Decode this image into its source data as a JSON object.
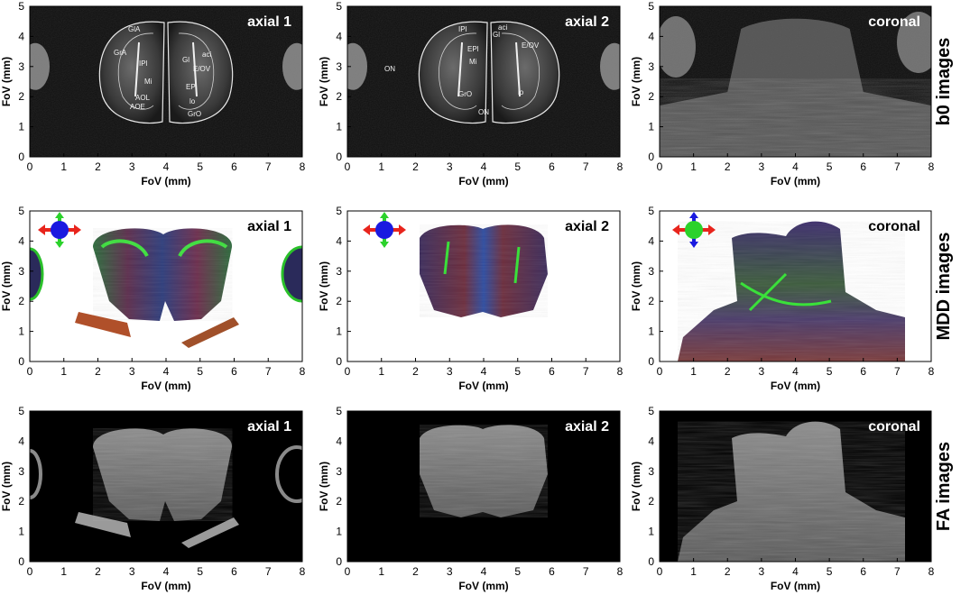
{
  "row_labels": [
    "b0 images",
    "MDD images",
    "FA images"
  ],
  "panels": [
    {
      "row": 0,
      "col": 0,
      "title": "axial 1",
      "xlabel": "FoV (mm)",
      "ylabel": "FoV (mm)",
      "x_ticks": [
        "0",
        "1",
        "2",
        "3",
        "4",
        "5",
        "6",
        "7",
        "8"
      ],
      "y_ticks": [
        "0",
        "1",
        "2",
        "3",
        "4",
        "5"
      ],
      "xlim": [
        0,
        8
      ],
      "ylim": [
        0,
        5
      ],
      "modality": "b0"
    },
    {
      "row": 0,
      "col": 1,
      "title": "axial 2",
      "xlabel": "FoV (mm)",
      "ylabel": "FoV (mm)",
      "x_ticks": [
        "0",
        "1",
        "2",
        "3",
        "4",
        "5",
        "6",
        "7",
        "8"
      ],
      "y_ticks": [
        "0",
        "1",
        "2",
        "3",
        "4",
        "5"
      ],
      "xlim": [
        0,
        8
      ],
      "ylim": [
        0,
        5
      ],
      "modality": "b0"
    },
    {
      "row": 0,
      "col": 2,
      "title": "coronal",
      "xlabel": "FoV (mm)",
      "ylabel": "FoV (mm)",
      "x_ticks": [
        "0",
        "1",
        "2",
        "3",
        "4",
        "5",
        "6",
        "7",
        "8"
      ],
      "y_ticks": [
        "0",
        "1",
        "2",
        "3",
        "4",
        "5"
      ],
      "xlim": [
        0,
        8
      ],
      "ylim": [
        0,
        5
      ],
      "modality": "b0"
    },
    {
      "row": 1,
      "col": 0,
      "title": "axial 1",
      "xlabel": "FoV (mm)",
      "ylabel": "FoV (mm)",
      "x_ticks": [
        "0",
        "1",
        "2",
        "3",
        "4",
        "5",
        "6",
        "7",
        "8"
      ],
      "y_ticks": [
        "0",
        "1",
        "2",
        "3",
        "4",
        "5"
      ],
      "xlim": [
        0,
        8
      ],
      "ylim": [
        0,
        5
      ],
      "modality": "mdd"
    },
    {
      "row": 1,
      "col": 1,
      "title": "axial 2",
      "xlabel": "FoV (mm)",
      "ylabel": "FoV (mm)",
      "x_ticks": [
        "0",
        "1",
        "2",
        "3",
        "4",
        "5",
        "6",
        "7",
        "8"
      ],
      "y_ticks": [
        "0",
        "1",
        "2",
        "3",
        "4",
        "5"
      ],
      "xlim": [
        0,
        8
      ],
      "ylim": [
        0,
        5
      ],
      "modality": "mdd"
    },
    {
      "row": 1,
      "col": 2,
      "title": "coronal",
      "xlabel": "FoV (mm)",
      "ylabel": "FoV (mm)",
      "x_ticks": [
        "0",
        "1",
        "2",
        "3",
        "4",
        "5",
        "6",
        "7",
        "8"
      ],
      "y_ticks": [
        "0",
        "1",
        "2",
        "3",
        "4",
        "5"
      ],
      "xlim": [
        0,
        8
      ],
      "ylim": [
        0,
        5
      ],
      "modality": "mdd"
    },
    {
      "row": 2,
      "col": 0,
      "title": "axial 1",
      "xlabel": "FoV (mm)",
      "ylabel": "FoV (mm)",
      "x_ticks": [
        "0",
        "1",
        "2",
        "3",
        "4",
        "5",
        "6",
        "7",
        "8"
      ],
      "y_ticks": [
        "0",
        "1",
        "2",
        "3",
        "4",
        "5"
      ],
      "xlim": [
        0,
        8
      ],
      "ylim": [
        0,
        5
      ],
      "modality": "fa"
    },
    {
      "row": 2,
      "col": 1,
      "title": "axial 2",
      "xlabel": "FoV (mm)",
      "ylabel": "FoV (mm)",
      "x_ticks": [
        "0",
        "1",
        "2",
        "3",
        "4",
        "5",
        "6",
        "7",
        "8"
      ],
      "y_ticks": [
        "0",
        "1",
        "2",
        "3",
        "4",
        "5"
      ],
      "xlim": [
        0,
        8
      ],
      "ylim": [
        0,
        5
      ],
      "modality": "fa"
    },
    {
      "row": 2,
      "col": 2,
      "title": "coronal",
      "xlabel": "FoV (mm)",
      "ylabel": "FoV (mm)",
      "x_ticks": [
        "0",
        "1",
        "2",
        "3",
        "4",
        "5",
        "6",
        "7",
        "8"
      ],
      "y_ticks": [
        "0",
        "1",
        "2",
        "3",
        "4",
        "5"
      ],
      "xlim": [
        0,
        8
      ],
      "ylim": [
        0,
        5
      ],
      "modality": "fa"
    }
  ],
  "atlas_labels": {
    "axial 1": [
      "GlA",
      "GrA",
      "IPl",
      "Gl",
      "Mi",
      "AOL",
      "AOE",
      "EPl",
      "E/OV",
      "aci",
      "lo",
      "GrO"
    ],
    "axial 2": [
      "IPl",
      "Gl",
      "EPl",
      "Mi",
      "GrO",
      "ON",
      "aci",
      "E/OV",
      "lo",
      "ON"
    ]
  },
  "orientation_colors": {
    "red": "#e8241c",
    "green": "#2bd22b",
    "blue": "#1a1ae0"
  }
}
